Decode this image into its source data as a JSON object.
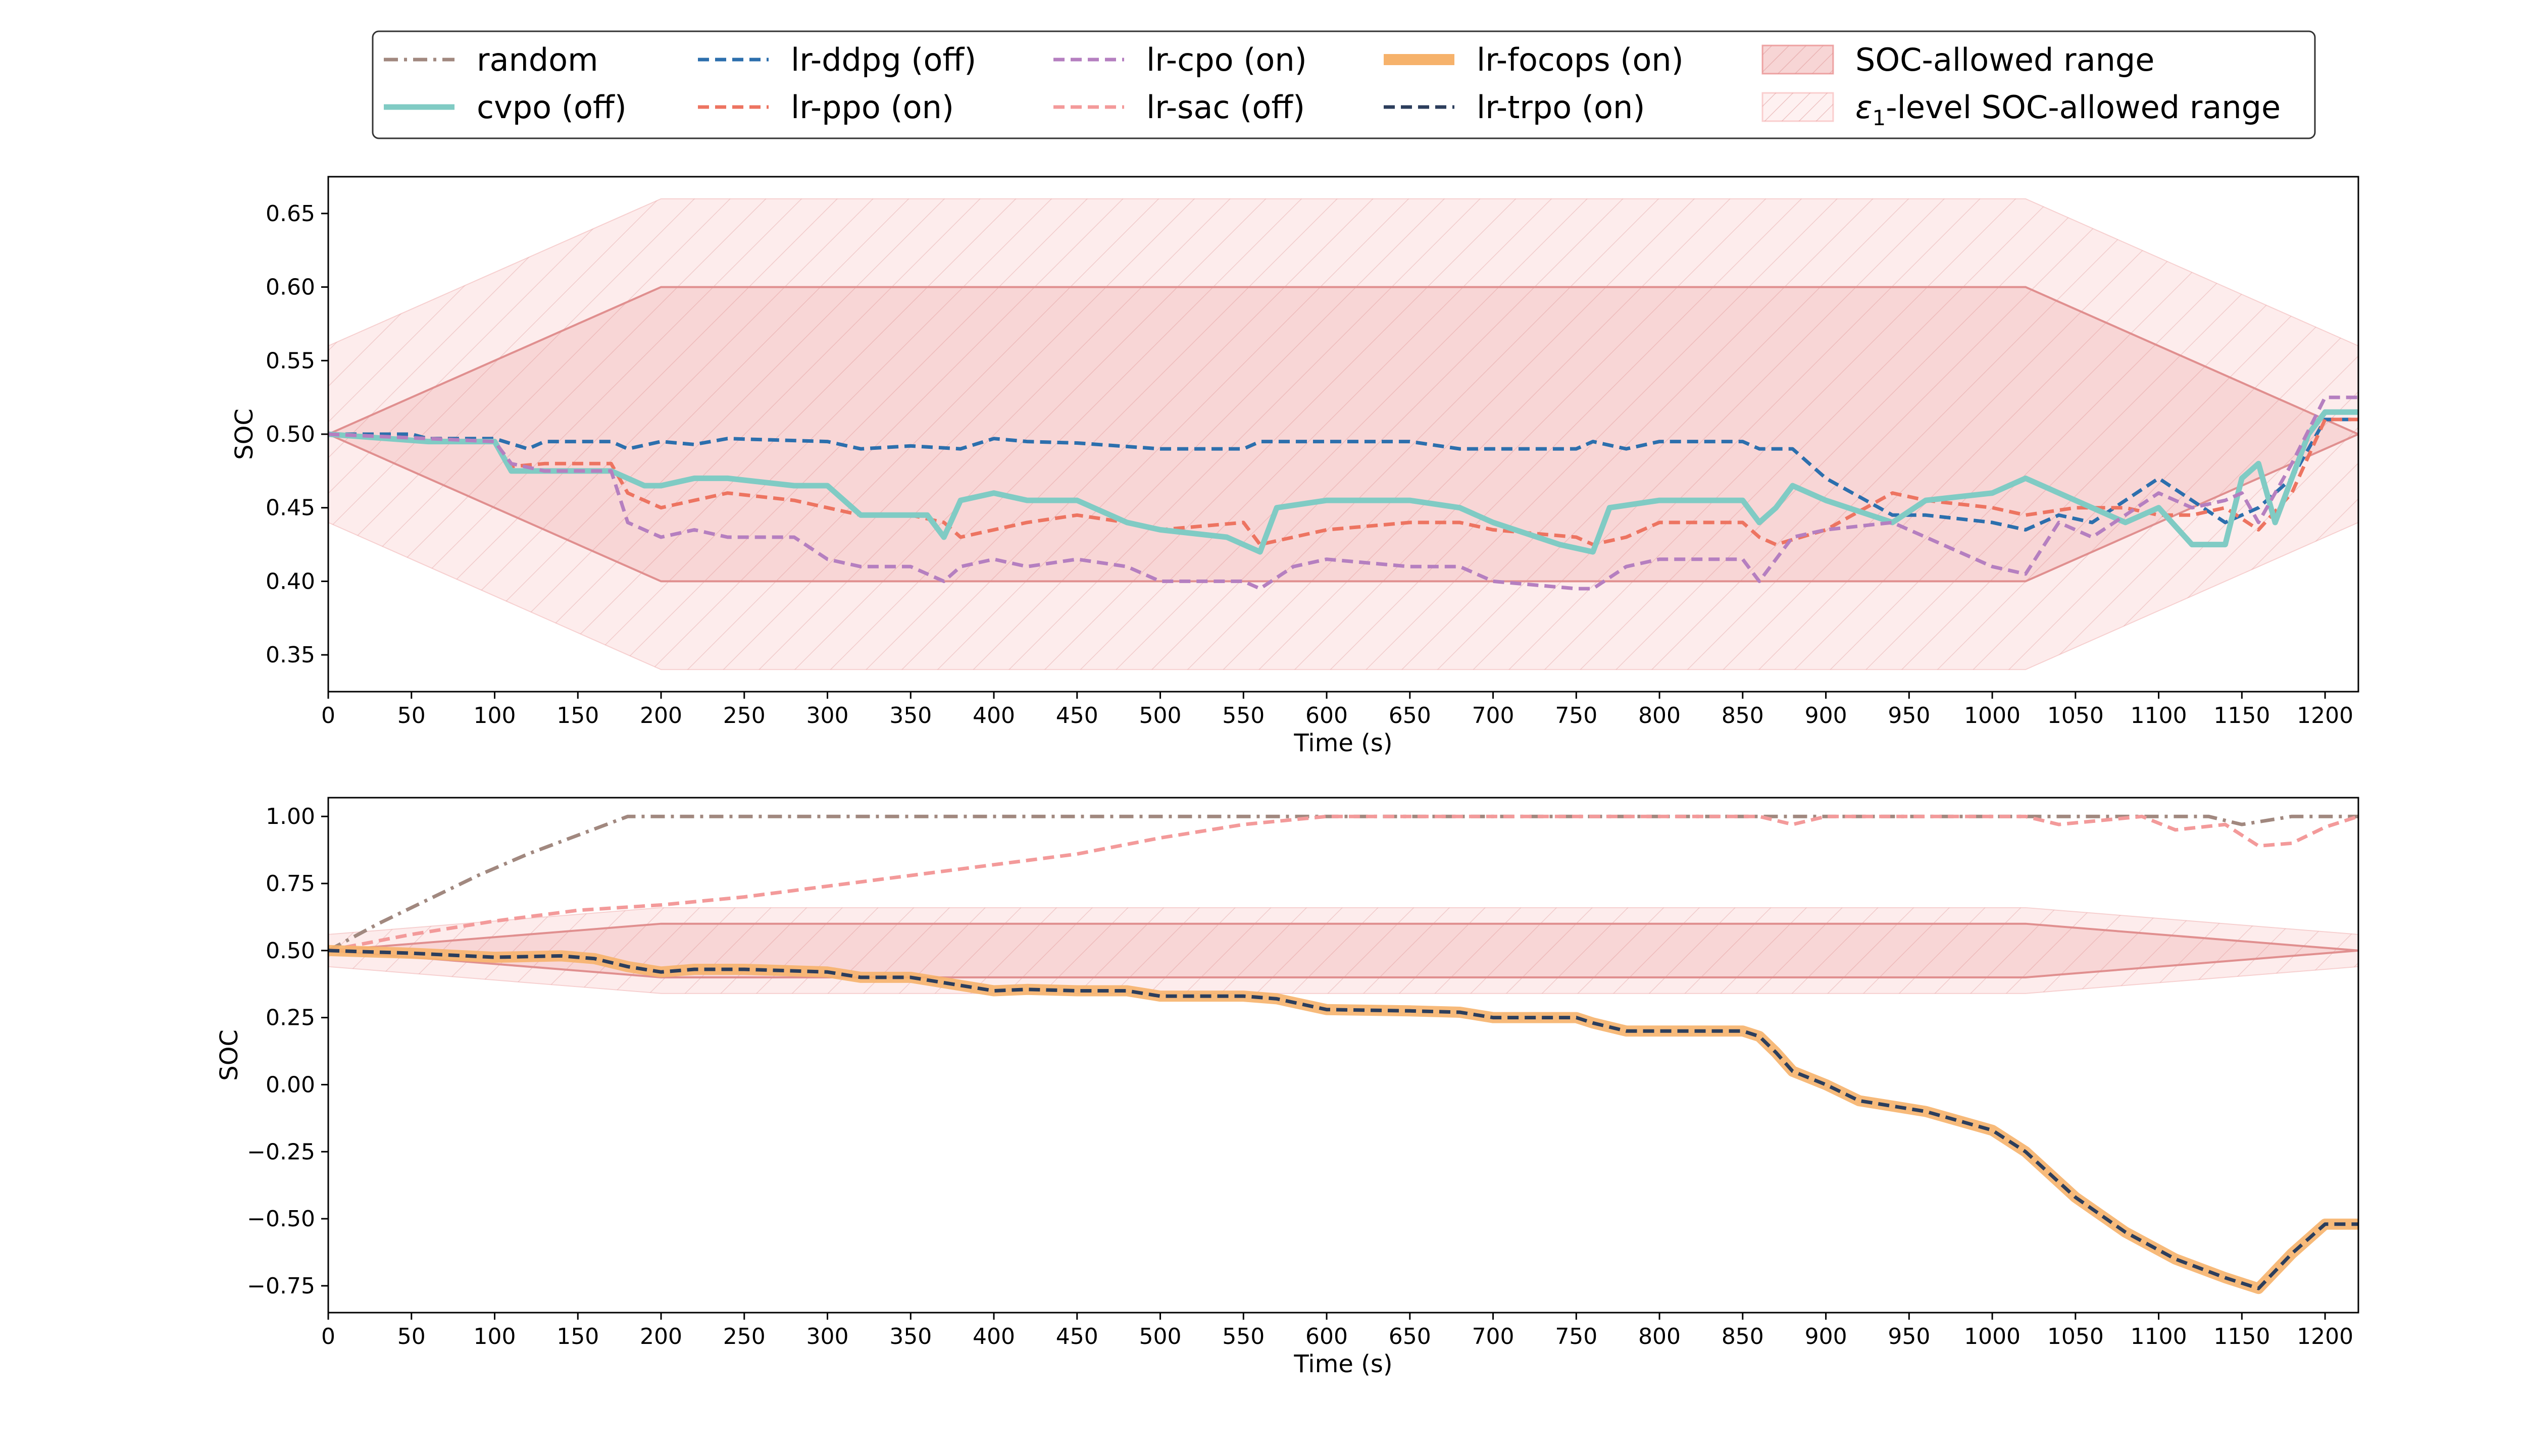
{
  "legend": {
    "placement": "top-center",
    "items": [
      {
        "label": "random",
        "style": "dashdot",
        "color": "#a1887f"
      },
      {
        "label": "cvpo (off)",
        "style": "solid",
        "color": "#80cbc4"
      },
      {
        "label": "lr-ddpg (off)",
        "style": "dashed",
        "color": "#2c6fad"
      },
      {
        "label": "lr-ppo (on)",
        "style": "dashed",
        "color": "#ed7461"
      },
      {
        "label": "lr-cpo (on)",
        "style": "dashed",
        "color": "#b57fc0"
      },
      {
        "label": "lr-sac (off)",
        "style": "dashed",
        "color": "#f39a9a"
      },
      {
        "label": "lr-focops (on)",
        "style": "solid",
        "color": "#f6b26b"
      },
      {
        "label": "lr-trpo (on)",
        "style": "dashed",
        "color": "#2c3e5c"
      },
      {
        "label": "SOC-allowed range",
        "style": "band",
        "color": "#e57373"
      },
      {
        "label": "ε",
        "label_sub": "1",
        "label_suffix": "-level SOC-allowed range",
        "style": "band-light",
        "color": "#f7b3b3"
      }
    ]
  },
  "colors": {
    "band": "#e57373",
    "band_light": "#f7b3b3",
    "axis": "#000000"
  },
  "chart_data": [
    {
      "type": "line",
      "xlabel": "Time (s)",
      "ylabel": "SOC",
      "xlim": [
        0,
        1220
      ],
      "ylim": [
        0.325,
        0.675
      ],
      "xticks": [
        0,
        50,
        100,
        150,
        200,
        250,
        300,
        350,
        400,
        450,
        500,
        550,
        600,
        650,
        700,
        750,
        800,
        850,
        900,
        950,
        1000,
        1050,
        1100,
        1150,
        1200
      ],
      "yticks": [
        0.35,
        0.4,
        0.45,
        0.5,
        0.55,
        0.6,
        0.65
      ],
      "ytick_labels": [
        "0.35",
        "0.40",
        "0.45",
        "0.50",
        "0.55",
        "0.60",
        "0.65"
      ],
      "bands": {
        "soc_allowed": {
          "x": [
            0,
            200,
            1020,
            1220
          ],
          "lower": [
            0.5,
            0.4,
            0.4,
            0.5
          ],
          "upper": [
            0.5,
            0.6,
            0.6,
            0.5
          ]
        },
        "eps_level": {
          "x": [
            0,
            200,
            1020,
            1220
          ],
          "lower": [
            0.44,
            0.34,
            0.34,
            0.44
          ],
          "upper": [
            0.56,
            0.66,
            0.66,
            0.56
          ]
        }
      },
      "series": [
        {
          "name": "lr-ddpg (off)",
          "x": [
            0,
            50,
            60,
            100,
            120,
            130,
            170,
            180,
            200,
            220,
            240,
            300,
            320,
            350,
            380,
            400,
            420,
            450,
            500,
            550,
            560,
            580,
            600,
            650,
            680,
            700,
            750,
            760,
            780,
            800,
            850,
            860,
            880,
            900,
            940,
            960,
            1000,
            1020,
            1040,
            1060,
            1100,
            1120,
            1140,
            1160,
            1180,
            1200,
            1220
          ],
          "y": [
            0.5,
            0.5,
            0.497,
            0.497,
            0.49,
            0.495,
            0.495,
            0.49,
            0.495,
            0.493,
            0.497,
            0.495,
            0.49,
            0.492,
            0.49,
            0.497,
            0.495,
            0.494,
            0.49,
            0.49,
            0.495,
            0.495,
            0.495,
            0.495,
            0.49,
            0.49,
            0.49,
            0.495,
            0.49,
            0.495,
            0.495,
            0.49,
            0.49,
            0.47,
            0.445,
            0.445,
            0.44,
            0.435,
            0.445,
            0.44,
            0.47,
            0.455,
            0.44,
            0.45,
            0.47,
            0.51,
            0.51
          ]
        },
        {
          "name": "lr-ppo (on)",
          "x": [
            0,
            60,
            100,
            110,
            130,
            170,
            180,
            200,
            220,
            240,
            280,
            300,
            320,
            350,
            370,
            380,
            400,
            420,
            450,
            480,
            500,
            550,
            560,
            580,
            600,
            650,
            680,
            700,
            750,
            760,
            780,
            800,
            850,
            860,
            870,
            900,
            940,
            960,
            1000,
            1020,
            1050,
            1080,
            1100,
            1120,
            1140,
            1160,
            1180,
            1200,
            1220
          ],
          "y": [
            0.5,
            0.497,
            0.495,
            0.478,
            0.48,
            0.48,
            0.46,
            0.45,
            0.455,
            0.46,
            0.455,
            0.45,
            0.445,
            0.445,
            0.44,
            0.43,
            0.435,
            0.44,
            0.445,
            0.44,
            0.435,
            0.44,
            0.425,
            0.43,
            0.435,
            0.44,
            0.44,
            0.435,
            0.43,
            0.425,
            0.43,
            0.44,
            0.44,
            0.43,
            0.425,
            0.435,
            0.46,
            0.455,
            0.45,
            0.445,
            0.45,
            0.45,
            0.445,
            0.445,
            0.45,
            0.435,
            0.46,
            0.51,
            0.51
          ]
        },
        {
          "name": "cvpo (off)",
          "x": [
            0,
            60,
            100,
            110,
            130,
            170,
            180,
            190,
            200,
            220,
            240,
            280,
            300,
            320,
            360,
            370,
            380,
            400,
            420,
            450,
            480,
            500,
            540,
            560,
            570,
            600,
            620,
            650,
            680,
            700,
            740,
            760,
            770,
            800,
            820,
            850,
            860,
            870,
            880,
            900,
            940,
            960,
            1000,
            1020,
            1060,
            1080,
            1100,
            1120,
            1140,
            1150,
            1160,
            1170,
            1190,
            1200,
            1220
          ],
          "y": [
            0.5,
            0.495,
            0.495,
            0.475,
            0.475,
            0.475,
            0.47,
            0.465,
            0.465,
            0.47,
            0.47,
            0.465,
            0.465,
            0.445,
            0.445,
            0.43,
            0.455,
            0.46,
            0.455,
            0.455,
            0.44,
            0.435,
            0.43,
            0.42,
            0.45,
            0.455,
            0.455,
            0.455,
            0.45,
            0.44,
            0.425,
            0.42,
            0.45,
            0.455,
            0.455,
            0.455,
            0.44,
            0.45,
            0.465,
            0.455,
            0.44,
            0.455,
            0.46,
            0.47,
            0.45,
            0.44,
            0.45,
            0.425,
            0.425,
            0.47,
            0.48,
            0.44,
            0.5,
            0.515,
            0.515
          ]
        },
        {
          "name": "lr-cpo (on)",
          "x": [
            0,
            60,
            100,
            110,
            130,
            170,
            180,
            200,
            220,
            240,
            280,
            300,
            320,
            350,
            370,
            380,
            400,
            420,
            450,
            480,
            500,
            550,
            560,
            580,
            600,
            650,
            680,
            700,
            750,
            760,
            780,
            800,
            850,
            860,
            880,
            900,
            940,
            960,
            1000,
            1020,
            1040,
            1060,
            1100,
            1120,
            1140,
            1150,
            1160,
            1180,
            1200,
            1220
          ],
          "y": [
            0.5,
            0.497,
            0.495,
            0.48,
            0.475,
            0.475,
            0.44,
            0.43,
            0.435,
            0.43,
            0.43,
            0.415,
            0.41,
            0.41,
            0.4,
            0.41,
            0.415,
            0.41,
            0.415,
            0.41,
            0.4,
            0.4,
            0.395,
            0.41,
            0.415,
            0.41,
            0.41,
            0.4,
            0.395,
            0.395,
            0.41,
            0.415,
            0.415,
            0.4,
            0.43,
            0.435,
            0.44,
            0.43,
            0.41,
            0.405,
            0.44,
            0.43,
            0.46,
            0.45,
            0.455,
            0.46,
            0.44,
            0.48,
            0.525,
            0.525
          ]
        }
      ]
    },
    {
      "type": "line",
      "xlabel": "Time (s)",
      "ylabel": "SOC",
      "xlim": [
        0,
        1220
      ],
      "ylim": [
        -0.85,
        1.07
      ],
      "xticks": [
        0,
        50,
        100,
        150,
        200,
        250,
        300,
        350,
        400,
        450,
        500,
        550,
        600,
        650,
        700,
        750,
        800,
        850,
        900,
        950,
        1000,
        1050,
        1100,
        1150,
        1200
      ],
      "yticks": [
        -0.75,
        -0.5,
        -0.25,
        0.0,
        0.25,
        0.5,
        0.75,
        1.0
      ],
      "ytick_labels": [
        "−0.75",
        "−0.50",
        "−0.25",
        "0.00",
        "0.25",
        "0.50",
        "0.75",
        "1.00"
      ],
      "bands": {
        "soc_allowed": {
          "x": [
            0,
            200,
            1020,
            1220
          ],
          "lower": [
            0.5,
            0.4,
            0.4,
            0.5
          ],
          "upper": [
            0.5,
            0.6,
            0.6,
            0.5
          ]
        },
        "eps_level": {
          "x": [
            0,
            200,
            1020,
            1220
          ],
          "lower": [
            0.44,
            0.34,
            0.34,
            0.44
          ],
          "upper": [
            0.56,
            0.66,
            0.66,
            0.56
          ]
        }
      },
      "series": [
        {
          "name": "random",
          "x": [
            0,
            30,
            60,
            90,
            120,
            150,
            180,
            200,
            1130,
            1150,
            1160,
            1180,
            1220
          ],
          "y": [
            0.5,
            0.6,
            0.69,
            0.78,
            0.86,
            0.93,
            1.0,
            1.0,
            1.0,
            0.97,
            0.98,
            1.0,
            1.0
          ]
        },
        {
          "name": "lr-sac (off)",
          "x": [
            0,
            50,
            100,
            150,
            200,
            250,
            300,
            350,
            400,
            450,
            500,
            550,
            600,
            860,
            880,
            900,
            1020,
            1040,
            1090,
            1110,
            1140,
            1160,
            1180,
            1200,
            1220
          ],
          "y": [
            0.5,
            0.56,
            0.61,
            0.65,
            0.67,
            0.7,
            0.74,
            0.78,
            0.82,
            0.86,
            0.92,
            0.97,
            1.0,
            1.0,
            0.97,
            1.0,
            1.0,
            0.97,
            1.0,
            0.95,
            0.97,
            0.89,
            0.9,
            0.96,
            1.0
          ]
        },
        {
          "name": "lr-focops (on)",
          "x": [
            0,
            50,
            100,
            140,
            160,
            180,
            200,
            220,
            250,
            300,
            320,
            350,
            380,
            400,
            420,
            450,
            480,
            500,
            550,
            570,
            600,
            650,
            680,
            700,
            750,
            760,
            780,
            800,
            850,
            860,
            870,
            880,
            900,
            920,
            940,
            960,
            1000,
            1020,
            1050,
            1080,
            1110,
            1140,
            1160,
            1180,
            1200,
            1220
          ],
          "y": [
            0.5,
            0.49,
            0.475,
            0.48,
            0.47,
            0.44,
            0.42,
            0.43,
            0.43,
            0.42,
            0.4,
            0.4,
            0.37,
            0.35,
            0.355,
            0.35,
            0.35,
            0.33,
            0.33,
            0.32,
            0.28,
            0.275,
            0.27,
            0.25,
            0.25,
            0.23,
            0.2,
            0.2,
            0.2,
            0.18,
            0.12,
            0.05,
            0.0,
            -0.06,
            -0.08,
            -0.1,
            -0.17,
            -0.25,
            -0.42,
            -0.55,
            -0.65,
            -0.72,
            -0.76,
            -0.63,
            -0.52,
            -0.52
          ]
        },
        {
          "name": "lr-trpo (on)",
          "x": [
            0,
            50,
            100,
            140,
            160,
            180,
            200,
            220,
            250,
            300,
            320,
            350,
            380,
            400,
            420,
            450,
            480,
            500,
            550,
            570,
            600,
            650,
            680,
            700,
            750,
            760,
            780,
            800,
            850,
            860,
            870,
            880,
            900,
            920,
            940,
            960,
            1000,
            1020,
            1050,
            1080,
            1110,
            1140,
            1160,
            1180,
            1200,
            1220
          ],
          "y": [
            0.5,
            0.49,
            0.475,
            0.48,
            0.47,
            0.44,
            0.42,
            0.43,
            0.43,
            0.42,
            0.4,
            0.4,
            0.37,
            0.35,
            0.355,
            0.35,
            0.35,
            0.33,
            0.33,
            0.32,
            0.28,
            0.275,
            0.27,
            0.25,
            0.25,
            0.23,
            0.2,
            0.2,
            0.2,
            0.18,
            0.12,
            0.05,
            0.0,
            -0.06,
            -0.08,
            -0.1,
            -0.17,
            -0.25,
            -0.42,
            -0.55,
            -0.65,
            -0.72,
            -0.76,
            -0.63,
            -0.52,
            -0.52
          ]
        }
      ]
    }
  ]
}
